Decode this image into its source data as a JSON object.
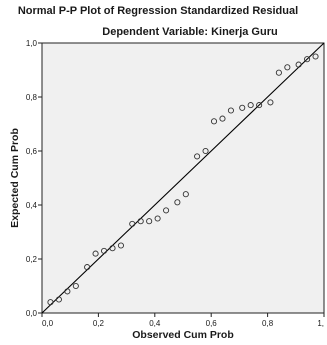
{
  "chart_data": {
    "type": "scatter",
    "title": "Normal P-P Plot of Regression Standardized Residual",
    "subtitle": "Dependent Variable: Kinerja Guru",
    "xlabel": "Observed Cum Prob",
    "ylabel": "Expected Cum Prob",
    "xlim": [
      0,
      1
    ],
    "ylim": [
      0,
      1
    ],
    "x_ticks": [
      "0,0",
      "0,2",
      "0,4",
      "0,6",
      "0,8",
      "1,"
    ],
    "y_ticks": [
      "0,0",
      "0,2",
      "0,4",
      "0,6",
      "0,8",
      "1,0"
    ],
    "reference_line": [
      [
        0,
        0
      ],
      [
        1,
        1
      ]
    ],
    "grid": false,
    "plot_background": "#f0f0f0",
    "marker_color": "#333333",
    "x": [
      0.03,
      0.06,
      0.09,
      0.12,
      0.16,
      0.19,
      0.22,
      0.25,
      0.28,
      0.32,
      0.35,
      0.38,
      0.41,
      0.44,
      0.48,
      0.51,
      0.55,
      0.58,
      0.61,
      0.64,
      0.67,
      0.71,
      0.74,
      0.77,
      0.81,
      0.84,
      0.87,
      0.91,
      0.94,
      0.97
    ],
    "y": [
      0.04,
      0.05,
      0.08,
      0.1,
      0.17,
      0.22,
      0.23,
      0.24,
      0.25,
      0.33,
      0.34,
      0.34,
      0.35,
      0.38,
      0.41,
      0.44,
      0.58,
      0.6,
      0.71,
      0.72,
      0.75,
      0.76,
      0.77,
      0.77,
      0.78,
      0.89,
      0.91,
      0.92,
      0.94,
      0.95
    ]
  }
}
